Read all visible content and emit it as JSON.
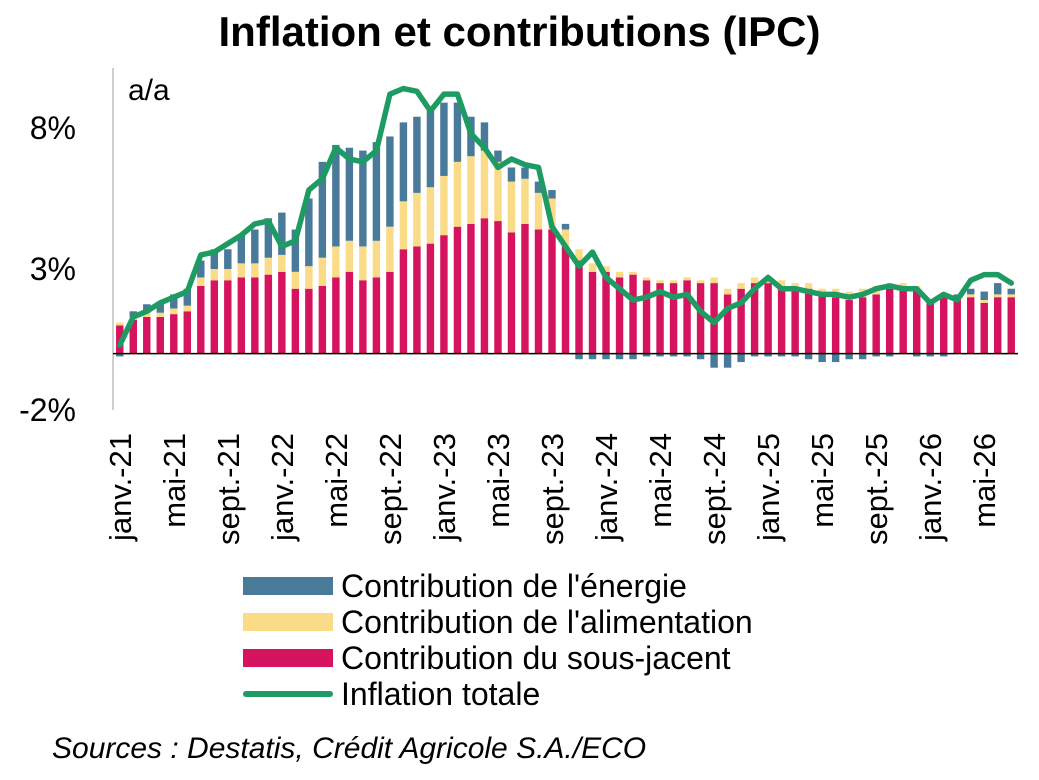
{
  "chart_data": {
    "type": "bar",
    "title": "Inflation et contributions (IPC)",
    "unit_label": "a/a",
    "ylim": [
      -2,
      10
    ],
    "y_ticks": [
      {
        "value": 8,
        "label": "8%"
      },
      {
        "value": 3,
        "label": "3%"
      },
      {
        "value": -2,
        "label": "-2%"
      }
    ],
    "x_tick_labels": [
      {
        "index": 0,
        "label": "janv.-21"
      },
      {
        "index": 4,
        "label": "mai-21"
      },
      {
        "index": 8,
        "label": "sept.-21"
      },
      {
        "index": 12,
        "label": "janv.-22"
      },
      {
        "index": 16,
        "label": "mai-22"
      },
      {
        "index": 20,
        "label": "sept.-22"
      },
      {
        "index": 24,
        "label": "janv.-23"
      },
      {
        "index": 28,
        "label": "mai-23"
      },
      {
        "index": 32,
        "label": "sept.-23"
      },
      {
        "index": 36,
        "label": "janv.-24"
      },
      {
        "index": 40,
        "label": "mai-24"
      },
      {
        "index": 44,
        "label": "sept.-24"
      },
      {
        "index": 48,
        "label": "janv.-25"
      },
      {
        "index": 52,
        "label": "mai-25"
      },
      {
        "index": 56,
        "label": "sept.-25"
      },
      {
        "index": 60,
        "label": "janv.-26"
      },
      {
        "index": 64,
        "label": "mai-26"
      }
    ],
    "stacked": true,
    "colors": {
      "energie": "#4a7a99",
      "alimentation": "#fadb87",
      "sous_jacent": "#d6135e",
      "inflation": "#1e9b63"
    },
    "series": [
      {
        "name": "Contribution de l'énergie",
        "key": "energie",
        "values": [
          -0.1,
          0.2,
          0.3,
          0.4,
          0.5,
          0.6,
          0.6,
          0.7,
          0.7,
          1.0,
          1.2,
          1.4,
          1.5,
          1.5,
          2.4,
          3.4,
          3.6,
          3.3,
          3.4,
          3.5,
          3.2,
          2.8,
          2.7,
          2.7,
          2.6,
          2.1,
          1.4,
          1.0,
          0.4,
          0.5,
          0.4,
          0.4,
          0.3,
          0.2,
          -0.2,
          -0.2,
          -0.2,
          -0.2,
          -0.2,
          -0.1,
          -0.1,
          -0.1,
          -0.1,
          -0.2,
          -0.5,
          -0.5,
          -0.3,
          -0.1,
          -0.1,
          -0.1,
          -0.1,
          -0.2,
          -0.3,
          -0.3,
          -0.2,
          -0.2,
          -0.1,
          -0.1,
          0.0,
          -0.1,
          -0.1,
          -0.1,
          0.1,
          0.2,
          0.3,
          0.4,
          0.2
        ]
      },
      {
        "name": "Contribution de l'alimentation",
        "key": "alimentation",
        "values": [
          0.1,
          0.1,
          0.15,
          0.15,
          0.2,
          0.2,
          0.3,
          0.4,
          0.4,
          0.5,
          0.5,
          0.6,
          0.6,
          0.6,
          0.8,
          1.0,
          1.1,
          1.1,
          1.2,
          1.3,
          1.6,
          1.7,
          1.9,
          2.0,
          2.1,
          2.3,
          2.4,
          2.4,
          2.1,
          1.8,
          1.6,
          1.3,
          1.1,
          0.6,
          0.4,
          0.3,
          0.2,
          0.2,
          0.1,
          0.1,
          0.1,
          0.1,
          0.1,
          0.1,
          0.2,
          0.2,
          0.2,
          0.2,
          0.2,
          0.2,
          0.2,
          0.2,
          0.2,
          0.3,
          0.3,
          0.3,
          0.3,
          0.2,
          0.2,
          0.1,
          0.1,
          0.1,
          0.1,
          0.1,
          0.1,
          0.1,
          0.1
        ]
      },
      {
        "name": "Contribution du sous-jacent",
        "key": "sous_jacent",
        "values": [
          1.0,
          1.2,
          1.3,
          1.3,
          1.4,
          1.5,
          2.4,
          2.6,
          2.6,
          2.7,
          2.7,
          2.8,
          2.9,
          2.3,
          2.3,
          2.4,
          2.7,
          2.9,
          2.6,
          2.7,
          2.9,
          3.7,
          3.8,
          3.9,
          4.2,
          4.5,
          4.6,
          4.8,
          4.7,
          4.3,
          4.6,
          4.4,
          4.4,
          3.8,
          3.3,
          2.9,
          2.9,
          2.7,
          2.8,
          2.6,
          2.5,
          2.5,
          2.6,
          2.5,
          2.5,
          2.1,
          2.3,
          2.5,
          2.5,
          2.4,
          2.3,
          2.3,
          2.1,
          2.0,
          1.9,
          2.0,
          2.1,
          2.3,
          2.3,
          2.3,
          1.8,
          2.0,
          1.9,
          2.0,
          1.8,
          2.0,
          2.0
        ]
      },
      {
        "name": "Inflation totale",
        "key": "inflation",
        "type": "line",
        "values": [
          0.3,
          1.3,
          1.5,
          1.8,
          2.0,
          2.2,
          3.5,
          3.6,
          3.9,
          4.2,
          4.6,
          4.7,
          3.8,
          4.0,
          5.8,
          6.2,
          7.3,
          6.9,
          6.8,
          7.2,
          9.2,
          9.4,
          9.3,
          8.6,
          9.2,
          9.2,
          7.8,
          7.3,
          6.6,
          6.9,
          6.7,
          6.6,
          4.5,
          3.8,
          3.1,
          3.6,
          2.7,
          2.3,
          1.9,
          2.0,
          2.2,
          2.0,
          2.1,
          1.5,
          1.1,
          1.6,
          1.8,
          2.3,
          2.7,
          2.3,
          2.3,
          2.2,
          2.1,
          2.1,
          2.0,
          2.1,
          2.3,
          2.4,
          2.3,
          2.3,
          1.8,
          2.1,
          1.9,
          2.6,
          2.8,
          2.8,
          2.5
        ]
      }
    ]
  },
  "legend": {
    "items": [
      {
        "label": "Contribution de l'énergie"
      },
      {
        "label": "Contribution de l'alimentation"
      },
      {
        "label": "Contribution du sous-jacent"
      },
      {
        "label": "Inflation totale"
      }
    ]
  },
  "source": "Sources : Destatis, Crédit Agricole S.A./ECO"
}
